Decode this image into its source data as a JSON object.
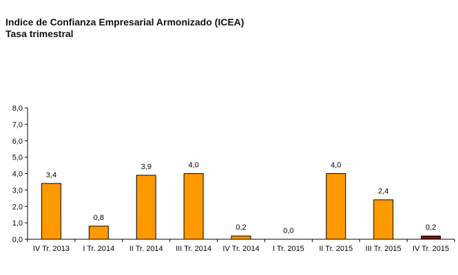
{
  "title": "Indice de Confianza Empresarial Armonizado (ICEA)",
  "subtitle": "Tasa trimestral",
  "colors": {
    "bar_default": "#ff9900",
    "bar_highlight": "#6b1a0f",
    "bar_stroke": "#000000",
    "axis": "#000000"
  },
  "chart_data": {
    "type": "bar",
    "title": "Indice de Confianza Empresarial Armonizado (ICEA)",
    "subtitle": "Tasa trimestral",
    "categories": [
      "IV Tr. 2013",
      "I Tr. 2014",
      "II Tr. 2014",
      "III Tr. 2014",
      "IV Tr. 2014",
      "I Tr. 2015",
      "II Tr. 2015",
      "III Tr. 2015",
      "IV Tr. 2015"
    ],
    "values": [
      3.4,
      0.8,
      3.9,
      4.0,
      0.2,
      0.0,
      4.0,
      2.4,
      0.2
    ],
    "data_labels": [
      "3,4",
      "0,8",
      "3,9",
      "4,0",
      "0,2",
      "0,0",
      "4,0",
      "2,4",
      "0,2"
    ],
    "highlight_index": 8,
    "y_ticks": [
      0,
      1,
      2,
      3,
      4,
      5,
      6,
      7,
      8
    ],
    "y_tick_labels": [
      "0,0",
      "1,0",
      "2,0",
      "3,0",
      "4,0",
      "5,0",
      "6,0",
      "7,0",
      "8,0"
    ],
    "ylim": [
      0,
      8
    ],
    "xlabel": "",
    "ylabel": "",
    "grid": false,
    "legend": "none"
  }
}
